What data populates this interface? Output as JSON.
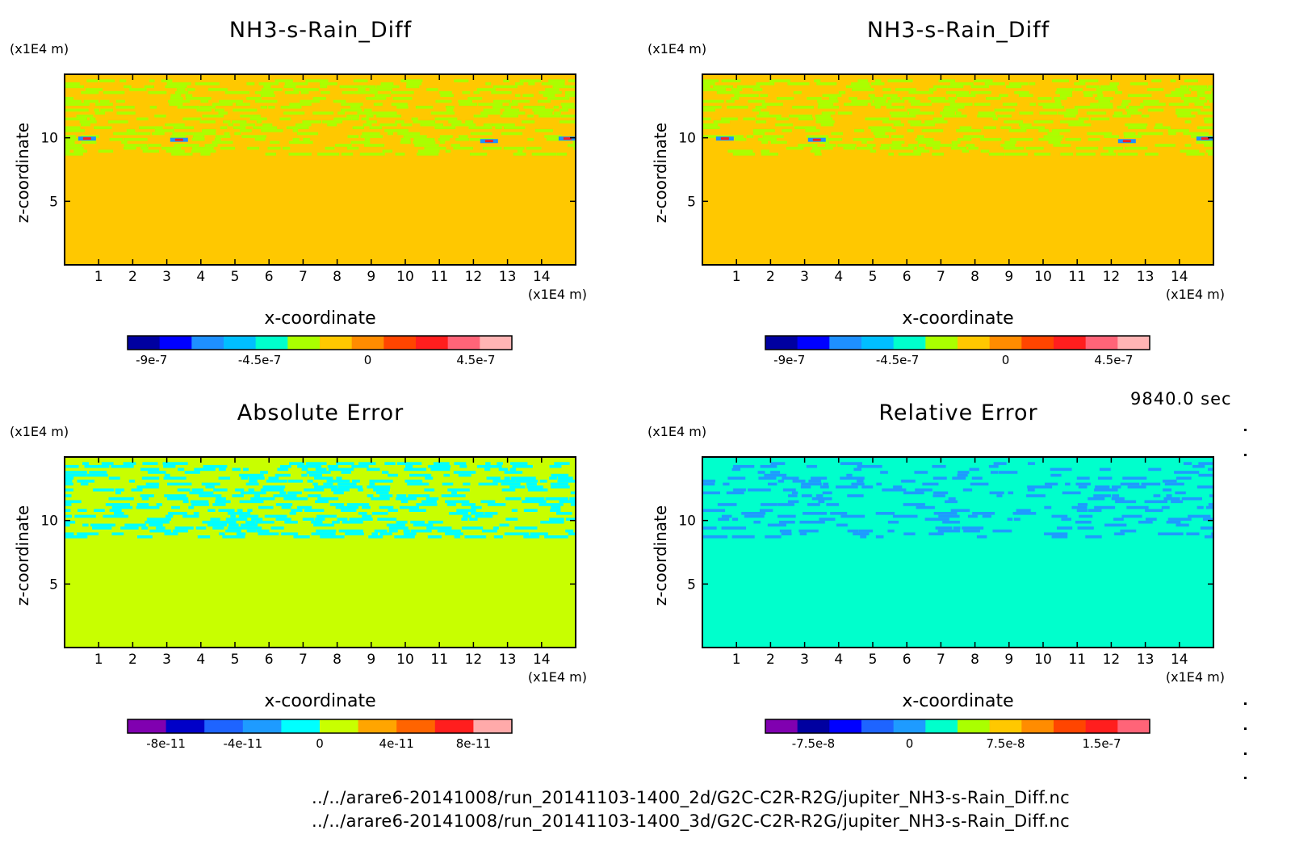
{
  "chart_data": [
    {
      "type": "heatmap",
      "title": "NH3-s-Rain_Diff",
      "xlabel": "x-coordinate",
      "ylabel": "z-coordinate",
      "x_unit": "(x1E4 m)",
      "y_unit": "(x1E4 m)",
      "xlim": [
        0,
        15
      ],
      "ylim": [
        0,
        15
      ],
      "xticks": [
        "1",
        "2",
        "3",
        "4",
        "5",
        "6",
        "7",
        "8",
        "9",
        "10",
        "11",
        "12",
        "13",
        "14"
      ],
      "yticks": [
        "5",
        "10"
      ],
      "colorbar": {
        "colors": [
          "#0000a0",
          "#0000ff",
          "#1e90ff",
          "#00bfff",
          "#00ffcc",
          "#aaff00",
          "#ffc800",
          "#ff8c00",
          "#ff4500",
          "#ff1e1e",
          "#ff6478",
          "#ffb4b4"
        ],
        "labels": [
          "-9e-7",
          "-4.5e-7",
          "0",
          "4.5e-7"
        ],
        "label_values": [
          -9e-07,
          -4.5e-07,
          0,
          4.5e-07
        ],
        "range": [
          -1e-06,
          6e-07
        ]
      },
      "background_color": "#ffc800",
      "band_color": "#aaff00"
    },
    {
      "type": "heatmap",
      "title": "NH3-s-Rain_Diff",
      "xlabel": "x-coordinate",
      "ylabel": "z-coordinate",
      "x_unit": "(x1E4 m)",
      "y_unit": "(x1E4 m)",
      "xlim": [
        0,
        15
      ],
      "ylim": [
        0,
        15
      ],
      "xticks": [
        "1",
        "2",
        "3",
        "4",
        "5",
        "6",
        "7",
        "8",
        "9",
        "10",
        "11",
        "12",
        "13",
        "14"
      ],
      "yticks": [
        "5",
        "10"
      ],
      "colorbar": {
        "colors": [
          "#0000a0",
          "#0000ff",
          "#1e90ff",
          "#00bfff",
          "#00ffcc",
          "#aaff00",
          "#ffc800",
          "#ff8c00",
          "#ff4500",
          "#ff1e1e",
          "#ff6478",
          "#ffb4b4"
        ],
        "labels": [
          "-9e-7",
          "-4.5e-7",
          "0",
          "4.5e-7"
        ],
        "label_values": [
          -9e-07,
          -4.5e-07,
          0,
          4.5e-07
        ],
        "range": [
          -1e-06,
          6e-07
        ]
      },
      "background_color": "#ffc800",
      "band_color": "#aaff00"
    },
    {
      "type": "heatmap",
      "title": "Absolute Error",
      "xlabel": "x-coordinate",
      "ylabel": "z-coordinate",
      "x_unit": "(x1E4 m)",
      "y_unit": "(x1E4 m)",
      "xlim": [
        0,
        15
      ],
      "ylim": [
        0,
        15
      ],
      "xticks": [
        "1",
        "2",
        "3",
        "4",
        "5",
        "6",
        "7",
        "8",
        "9",
        "10",
        "11",
        "12",
        "13",
        "14"
      ],
      "yticks": [
        "5",
        "10"
      ],
      "colorbar": {
        "colors": [
          "#8000b0",
          "#0000c8",
          "#1e64ff",
          "#1e9bff",
          "#00ffff",
          "#c8ff00",
          "#ffa500",
          "#ff6400",
          "#ff1e1e",
          "#ffaaaa"
        ],
        "labels": [
          "-8e-11",
          "-4e-11",
          "0",
          "4e-11",
          "8e-11"
        ],
        "label_values": [
          -8e-11,
          -4e-11,
          0,
          4e-11,
          8e-11
        ],
        "range": [
          -1e-10,
          1e-10
        ]
      },
      "background_color": "#c8ff00",
      "band_color": "#00ffff"
    },
    {
      "type": "heatmap",
      "title": "Relative Error",
      "xlabel": "x-coordinate",
      "ylabel": "z-coordinate",
      "x_unit": "(x1E4 m)",
      "y_unit": "(x1E4 m)",
      "xlim": [
        0,
        15
      ],
      "ylim": [
        0,
        15
      ],
      "xticks": [
        "1",
        "2",
        "3",
        "4",
        "5",
        "6",
        "7",
        "8",
        "9",
        "10",
        "11",
        "12",
        "13",
        "14"
      ],
      "yticks": [
        "5",
        "10"
      ],
      "colorbar": {
        "colors": [
          "#8000b0",
          "#0000a0",
          "#0000ff",
          "#1e64ff",
          "#1e9bff",
          "#00ffcc",
          "#aaff00",
          "#ffc800",
          "#ff8c00",
          "#ff4500",
          "#ff1e1e",
          "#ff6478"
        ],
        "labels": [
          "-7.5e-8",
          "0",
          "7.5e-8",
          "1.5e-7"
        ],
        "label_values": [
          -7.5e-08,
          0,
          7.5e-08,
          1.5e-07
        ],
        "range": [
          -1.125e-07,
          1.875e-07
        ]
      },
      "background_color": "#00ffcc",
      "band_color": "#1e9bff"
    }
  ],
  "time_label": "9840.0 sec",
  "file_paths": [
    "../../arare6-20141008/run_20141103-1400_2d/G2C-C2R-R2G/jupiter_NH3-s-Rain_Diff.nc",
    "../../arare6-20141008/run_20141103-1400_3d/G2C-C2R-R2G/jupiter_NH3-s-Rain_Diff.nc"
  ]
}
